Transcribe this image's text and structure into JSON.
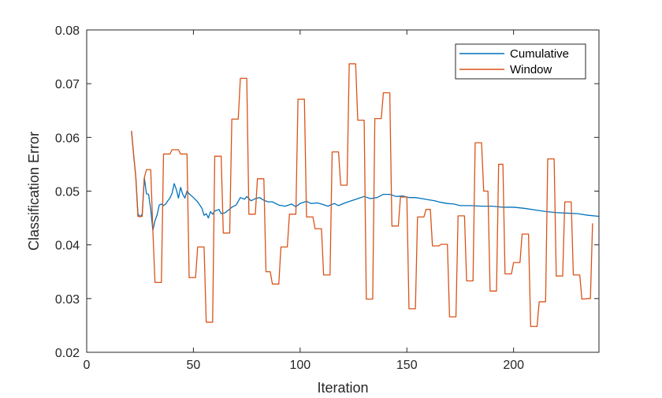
{
  "chart_data": {
    "type": "line",
    "title": "",
    "xlabel": "Iteration",
    "ylabel": "Classification Error",
    "xlim": [
      0,
      240
    ],
    "ylim": [
      0.02,
      0.08
    ],
    "xticks": [
      0,
      50,
      100,
      150,
      200
    ],
    "yticks": [
      0.02,
      0.03,
      0.04,
      0.05,
      0.06,
      0.07,
      0.08
    ],
    "xtick_labels": [
      "0",
      "50",
      "100",
      "150",
      "200"
    ],
    "ytick_labels": [
      "0.02",
      "0.03",
      "0.04",
      "0.05",
      "0.06",
      "0.07",
      "0.08"
    ],
    "grid": false,
    "legend_position": "top-right",
    "series": [
      {
        "name": "Cumulative",
        "color": "#0072BD",
        "points": [
          [
            21,
            0.0612
          ],
          [
            22,
            0.0567
          ],
          [
            23,
            0.0527
          ],
          [
            24,
            0.0458
          ],
          [
            25,
            0.0452
          ],
          [
            26,
            0.0457
          ],
          [
            27,
            0.0525
          ],
          [
            28,
            0.0495
          ],
          [
            29,
            0.0494
          ],
          [
            30,
            0.0466
          ],
          [
            31,
            0.0427
          ],
          [
            32,
            0.0445
          ],
          [
            33,
            0.0456
          ],
          [
            34,
            0.0474
          ],
          [
            35,
            0.0476
          ],
          [
            36,
            0.0473
          ],
          [
            37,
            0.0476
          ],
          [
            38,
            0.0482
          ],
          [
            39,
            0.0487
          ],
          [
            40,
            0.0496
          ],
          [
            41,
            0.0514
          ],
          [
            42,
            0.0503
          ],
          [
            43,
            0.0487
          ],
          [
            44,
            0.0507
          ],
          [
            45,
            0.0494
          ],
          [
            46,
            0.0487
          ],
          [
            47,
            0.05
          ],
          [
            48,
            0.0495
          ],
          [
            50,
            0.0488
          ],
          [
            52,
            0.048
          ],
          [
            54,
            0.0468
          ],
          [
            55,
            0.0455
          ],
          [
            56,
            0.0458
          ],
          [
            57,
            0.045
          ],
          [
            58,
            0.0462
          ],
          [
            59,
            0.0457
          ],
          [
            60,
            0.0463
          ],
          [
            62,
            0.0466
          ],
          [
            63,
            0.0458
          ],
          [
            65,
            0.046
          ],
          [
            68,
            0.047
          ],
          [
            70,
            0.0474
          ],
          [
            72,
            0.0488
          ],
          [
            74,
            0.0485
          ],
          [
            75,
            0.049
          ],
          [
            77,
            0.0482
          ],
          [
            79,
            0.0486
          ],
          [
            81,
            0.0488
          ],
          [
            83,
            0.0483
          ],
          [
            85,
            0.048
          ],
          [
            87,
            0.048
          ],
          [
            90,
            0.0474
          ],
          [
            93,
            0.0472
          ],
          [
            96,
            0.0476
          ],
          [
            98,
            0.0471
          ],
          [
            100,
            0.0477
          ],
          [
            103,
            0.0481
          ],
          [
            105,
            0.0477
          ],
          [
            108,
            0.0478
          ],
          [
            110,
            0.0476
          ],
          [
            113,
            0.0472
          ],
          [
            116,
            0.0477
          ],
          [
            118,
            0.0473
          ],
          [
            121,
            0.0478
          ],
          [
            124,
            0.0482
          ],
          [
            127,
            0.0486
          ],
          [
            130,
            0.049
          ],
          [
            133,
            0.0486
          ],
          [
            136,
            0.0488
          ],
          [
            139,
            0.0494
          ],
          [
            142,
            0.0494
          ],
          [
            145,
            0.049
          ],
          [
            148,
            0.0491
          ],
          [
            151,
            0.0488
          ],
          [
            154,
            0.0488
          ],
          [
            157,
            0.0486
          ],
          [
            160,
            0.0484
          ],
          [
            163,
            0.0482
          ],
          [
            166,
            0.0479
          ],
          [
            169,
            0.0477
          ],
          [
            172,
            0.0476
          ],
          [
            175,
            0.0473
          ],
          [
            180,
            0.0473
          ],
          [
            185,
            0.0472
          ],
          [
            190,
            0.0472
          ],
          [
            195,
            0.047
          ],
          [
            200,
            0.047
          ],
          [
            205,
            0.0468
          ],
          [
            210,
            0.0465
          ],
          [
            215,
            0.0462
          ],
          [
            220,
            0.046
          ],
          [
            225,
            0.0459
          ],
          [
            230,
            0.0458
          ],
          [
            235,
            0.0455
          ],
          [
            240,
            0.0453
          ]
        ]
      },
      {
        "name": "Window",
        "color": "#D95319",
        "points": [
          [
            21,
            0.0612
          ],
          [
            22,
            0.0567
          ],
          [
            23,
            0.0527
          ],
          [
            24,
            0.0453
          ],
          [
            25,
            0.0453
          ],
          [
            26,
            0.0453
          ],
          [
            27,
            0.0525
          ],
          [
            28,
            0.054
          ],
          [
            30,
            0.054
          ],
          [
            31,
            0.0427
          ],
          [
            32,
            0.033
          ],
          [
            35,
            0.033
          ],
          [
            36,
            0.0569
          ],
          [
            39,
            0.0569
          ],
          [
            40,
            0.0577
          ],
          [
            43,
            0.0577
          ],
          [
            44,
            0.0569
          ],
          [
            47,
            0.0569
          ],
          [
            48,
            0.0339
          ],
          [
            51,
            0.0339
          ],
          [
            52,
            0.0396
          ],
          [
            55,
            0.0396
          ],
          [
            56,
            0.0256
          ],
          [
            59,
            0.0256
          ],
          [
            60,
            0.0565
          ],
          [
            63,
            0.0565
          ],
          [
            64,
            0.0422
          ],
          [
            67,
            0.0422
          ],
          [
            68,
            0.0634
          ],
          [
            71,
            0.0634
          ],
          [
            72,
            0.071
          ],
          [
            75,
            0.071
          ],
          [
            76,
            0.0457
          ],
          [
            79,
            0.0457
          ],
          [
            80,
            0.0523
          ],
          [
            83,
            0.0523
          ],
          [
            84,
            0.035
          ],
          [
            86,
            0.035
          ],
          [
            87,
            0.0327
          ],
          [
            90,
            0.0327
          ],
          [
            91,
            0.0396
          ],
          [
            94,
            0.0396
          ],
          [
            95,
            0.0457
          ],
          [
            98,
            0.0457
          ],
          [
            99,
            0.0671
          ],
          [
            102,
            0.0671
          ],
          [
            103,
            0.0452
          ],
          [
            106,
            0.0452
          ],
          [
            107,
            0.043
          ],
          [
            110,
            0.043
          ],
          [
            111,
            0.0344
          ],
          [
            114,
            0.0344
          ],
          [
            115,
            0.0573
          ],
          [
            118,
            0.0573
          ],
          [
            119,
            0.0511
          ],
          [
            122,
            0.0511
          ],
          [
            123,
            0.0737
          ],
          [
            126,
            0.0737
          ],
          [
            127,
            0.0632
          ],
          [
            130,
            0.0632
          ],
          [
            131,
            0.0299
          ],
          [
            134,
            0.0299
          ],
          [
            135,
            0.0635
          ],
          [
            138,
            0.0635
          ],
          [
            139,
            0.0683
          ],
          [
            142,
            0.0683
          ],
          [
            143,
            0.0435
          ],
          [
            146,
            0.0435
          ],
          [
            147,
            0.0489
          ],
          [
            150,
            0.0489
          ],
          [
            151,
            0.0281
          ],
          [
            154,
            0.0281
          ],
          [
            155,
            0.0452
          ],
          [
            158,
            0.0452
          ],
          [
            159,
            0.0466
          ],
          [
            161,
            0.0466
          ],
          [
            162,
            0.0398
          ],
          [
            165,
            0.0398
          ],
          [
            166,
            0.0401
          ],
          [
            169,
            0.0401
          ],
          [
            170,
            0.0266
          ],
          [
            173,
            0.0266
          ],
          [
            174,
            0.0454
          ],
          [
            177,
            0.0454
          ],
          [
            178,
            0.0333
          ],
          [
            181,
            0.0333
          ],
          [
            182,
            0.059
          ],
          [
            185,
            0.059
          ],
          [
            186,
            0.05
          ],
          [
            188,
            0.05
          ],
          [
            189,
            0.0314
          ],
          [
            192,
            0.0314
          ],
          [
            193,
            0.055
          ],
          [
            195,
            0.055
          ],
          [
            196,
            0.0346
          ],
          [
            199,
            0.0346
          ],
          [
            200,
            0.0367
          ],
          [
            203,
            0.0367
          ],
          [
            204,
            0.042
          ],
          [
            207,
            0.042
          ],
          [
            208,
            0.0248
          ],
          [
            211,
            0.0248
          ],
          [
            212,
            0.0294
          ],
          [
            215,
            0.0294
          ],
          [
            216,
            0.056
          ],
          [
            219,
            0.056
          ],
          [
            220,
            0.0342
          ],
          [
            223,
            0.0342
          ],
          [
            224,
            0.048
          ],
          [
            227,
            0.048
          ],
          [
            228,
            0.0344
          ],
          [
            231,
            0.0344
          ],
          [
            232,
            0.0299
          ],
          [
            235,
            0.03
          ],
          [
            236,
            0.03
          ],
          [
            237,
            0.044
          ]
        ]
      }
    ]
  }
}
